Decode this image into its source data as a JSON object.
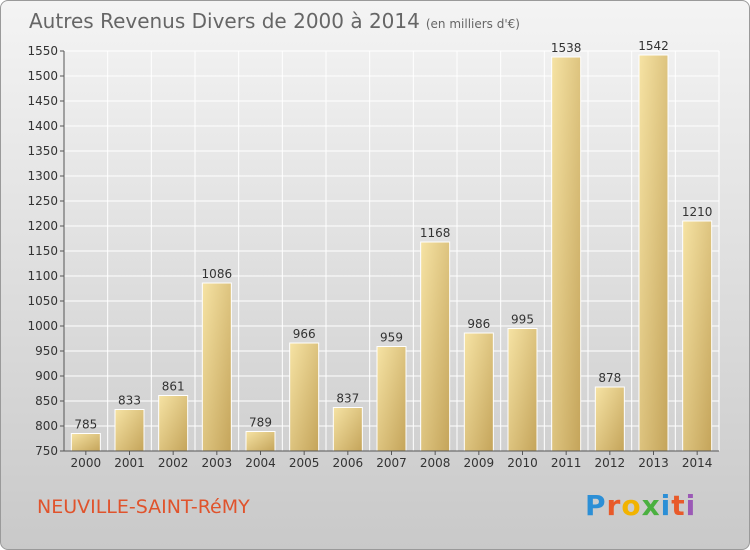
{
  "title": "Autres Revenus Divers de 2000 à 2014",
  "subtitle": "(en milliers d'€)",
  "town": "NEUVILLE-SAINT-RéMY",
  "logo_letters": [
    "P",
    "r",
    "o",
    "x",
    "i",
    "t",
    "i"
  ],
  "colors": {
    "bar_light": "#f3dc98",
    "bar_dark": "#c6a75a",
    "grid": "#ffffff",
    "town": "#e0532c"
  },
  "chart_data": {
    "type": "bar",
    "title": "Autres Revenus Divers de 2000 à 2014",
    "subtitle": "(en milliers d'€)",
    "categories": [
      "2000",
      "2001",
      "2002",
      "2003",
      "2004",
      "2005",
      "2006",
      "2007",
      "2008",
      "2009",
      "2010",
      "2011",
      "2012",
      "2013",
      "2014"
    ],
    "values": [
      785,
      833,
      861,
      1086,
      789,
      966,
      837,
      959,
      1168,
      986,
      995,
      1538,
      878,
      1542,
      1210
    ],
    "ylim": [
      750,
      1550
    ],
    "yticks": [
      750,
      800,
      850,
      900,
      950,
      1000,
      1050,
      1100,
      1150,
      1200,
      1250,
      1300,
      1350,
      1400,
      1450,
      1500,
      1550
    ],
    "grid": true,
    "xlabel": "",
    "ylabel": ""
  }
}
